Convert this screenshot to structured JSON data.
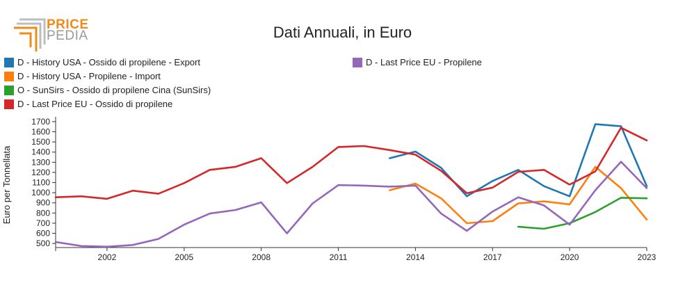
{
  "logo": {
    "word1": "PRICE",
    "word2": "PEDIA",
    "colors": {
      "primary": "#f08a18",
      "secondary": "#9a9a9a"
    }
  },
  "chart_data": {
    "type": "line",
    "title": "Dati Annuali, in Euro",
    "xlabel": "",
    "ylabel": "Euro per Tonnellata",
    "xlim": [
      2000,
      2023
    ],
    "ylim": [
      460,
      1720
    ],
    "x_ticks": [
      2002,
      2005,
      2008,
      2011,
      2014,
      2017,
      2020,
      2023
    ],
    "y_ticks": [
      500,
      600,
      700,
      800,
      900,
      1000,
      1100,
      1200,
      1300,
      1400,
      1500,
      1600,
      1700
    ],
    "grid": false,
    "legend_position": "top",
    "series": [
      {
        "name": "D - History USA - Ossido di propilene - Export",
        "color": "#1f77b4",
        "points": [
          [
            2013,
            1340
          ],
          [
            2014,
            1405
          ],
          [
            2015,
            1245
          ],
          [
            2016,
            965
          ],
          [
            2017,
            1115
          ],
          [
            2018,
            1225
          ],
          [
            2019,
            1065
          ],
          [
            2020,
            965
          ],
          [
            2021,
            1675
          ],
          [
            2022,
            1655
          ],
          [
            2023,
            1065
          ]
        ]
      },
      {
        "name": "D - History USA - Propilene - Import",
        "color": "#ff7f0e",
        "points": [
          [
            2013,
            1025
          ],
          [
            2014,
            1090
          ],
          [
            2015,
            945
          ],
          [
            2016,
            700
          ],
          [
            2017,
            720
          ],
          [
            2018,
            895
          ],
          [
            2019,
            915
          ],
          [
            2020,
            885
          ],
          [
            2021,
            1255
          ],
          [
            2022,
            1045
          ],
          [
            2023,
            735
          ]
        ]
      },
      {
        "name": "O - SunSirs - Ossido di propilene Cina (SunSirs)",
        "color": "#2ca02c",
        "points": [
          [
            2018,
            665
          ],
          [
            2019,
            645
          ],
          [
            2020,
            700
          ],
          [
            2021,
            810
          ],
          [
            2022,
            950
          ],
          [
            2023,
            945
          ]
        ]
      },
      {
        "name": "D - Last Price EU - Ossido di propilene",
        "color": "#d62728",
        "points": [
          [
            2000,
            955
          ],
          [
            2001,
            965
          ],
          [
            2002,
            940
          ],
          [
            2003,
            1020
          ],
          [
            2004,
            990
          ],
          [
            2005,
            1095
          ],
          [
            2006,
            1225
          ],
          [
            2007,
            1255
          ],
          [
            2008,
            1340
          ],
          [
            2009,
            1095
          ],
          [
            2010,
            1255
          ],
          [
            2011,
            1450
          ],
          [
            2012,
            1460
          ],
          [
            2013,
            1420
          ],
          [
            2014,
            1375
          ],
          [
            2015,
            1215
          ],
          [
            2016,
            995
          ],
          [
            2017,
            1050
          ],
          [
            2018,
            1205
          ],
          [
            2019,
            1225
          ],
          [
            2020,
            1080
          ],
          [
            2021,
            1210
          ],
          [
            2022,
            1640
          ],
          [
            2023,
            1515
          ]
        ]
      },
      {
        "name": "D - Last Price EU - Propilene",
        "color": "#9467bd",
        "points": [
          [
            2000,
            515
          ],
          [
            2001,
            475
          ],
          [
            2002,
            468
          ],
          [
            2003,
            485
          ],
          [
            2004,
            545
          ],
          [
            2005,
            685
          ],
          [
            2006,
            795
          ],
          [
            2007,
            830
          ],
          [
            2008,
            905
          ],
          [
            2009,
            600
          ],
          [
            2010,
            895
          ],
          [
            2011,
            1075
          ],
          [
            2012,
            1070
          ],
          [
            2013,
            1060
          ],
          [
            2014,
            1070
          ],
          [
            2015,
            795
          ],
          [
            2016,
            625
          ],
          [
            2017,
            815
          ],
          [
            2018,
            955
          ],
          [
            2019,
            875
          ],
          [
            2020,
            685
          ],
          [
            2021,
            1025
          ],
          [
            2022,
            1305
          ],
          [
            2023,
            1045
          ]
        ]
      }
    ]
  }
}
